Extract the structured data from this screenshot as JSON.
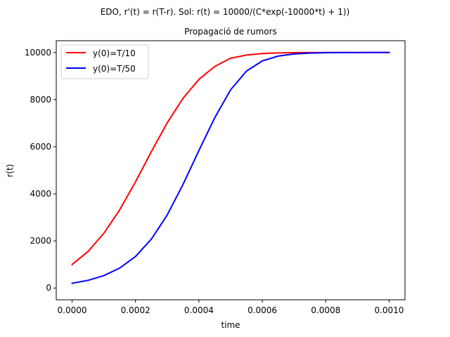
{
  "chart_data": {
    "type": "line",
    "suptitle": "EDO, r'(t) = r(T-r). Sol: r(t) = 10000/(C*exp(-10000*t) + 1))",
    "title": "Propagació de rumors",
    "xlabel": "time",
    "ylabel": "r(t)",
    "xlim": [
      -5e-05,
      0.00105
    ],
    "ylim": [
      -500,
      10500
    ],
    "xticks": [
      0.0,
      0.0002,
      0.0004,
      0.0006,
      0.0008,
      0.001
    ],
    "xtick_labels": [
      "0.0000",
      "0.0002",
      "0.0004",
      "0.0006",
      "0.0008",
      "0.0010"
    ],
    "yticks": [
      0,
      2000,
      4000,
      6000,
      8000,
      10000
    ],
    "ytick_labels": [
      "0",
      "2000",
      "4000",
      "6000",
      "8000",
      "10000"
    ],
    "grid": false,
    "legend_position": "top-left",
    "x": [
      0.0,
      5e-05,
      0.0001,
      0.00015,
      0.0002,
      0.00025,
      0.0003,
      0.00035,
      0.0004,
      0.00045,
      0.0005,
      0.00055,
      0.0006,
      0.00065,
      0.0007,
      0.00075,
      0.0008,
      0.00085,
      0.0009,
      0.00095,
      0.001
    ],
    "series": [
      {
        "name": "y(0)=T/10",
        "color": "#ff0000",
        "values": [
          1000,
          1548,
          2320,
          3318,
          4509,
          5790,
          7015,
          8057,
          8858,
          9408,
          9758,
          9891,
          9956,
          9983,
          9993,
          9997,
          9999,
          10000,
          10000,
          10000,
          10000
        ]
      },
      {
        "name": "y(0)=T/50",
        "color": "#0000ff",
        "values": [
          200,
          325,
          526,
          845,
          1338,
          2076,
          3102,
          4401,
          5840,
          7231,
          8418,
          9210,
          9643,
          9848,
          9937,
          9975,
          9990,
          9996,
          9998,
          9999,
          10000
        ]
      }
    ]
  }
}
